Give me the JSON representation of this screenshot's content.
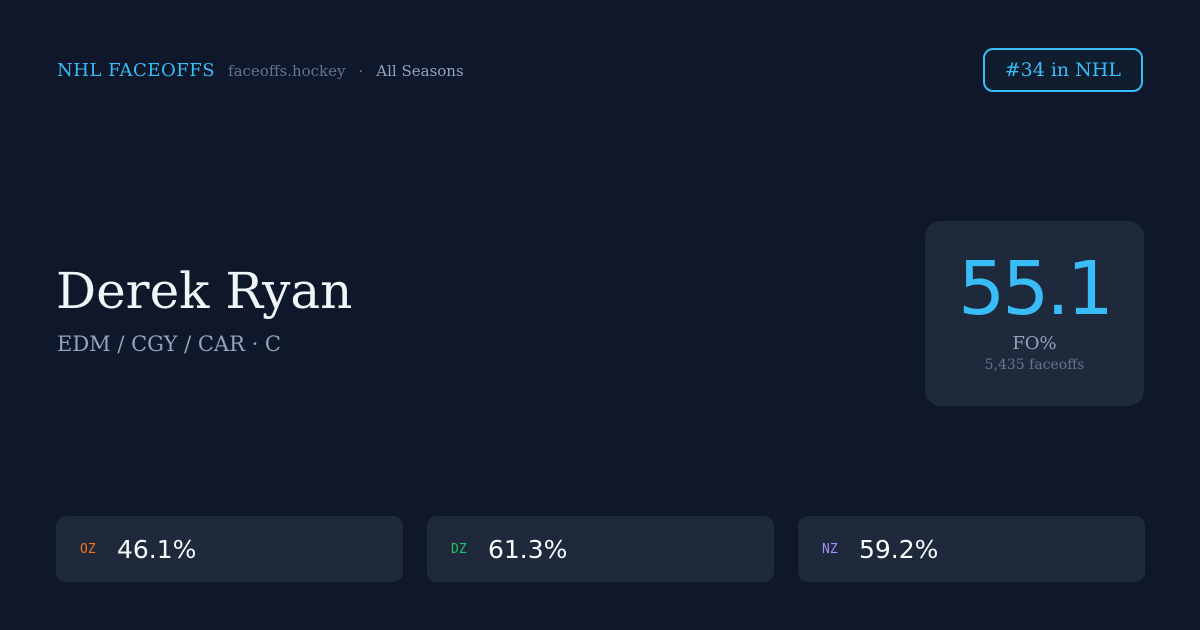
{
  "header": {
    "brand": "NHL FACEOFFS",
    "site": "faceoffs.hockey",
    "separator": "·",
    "season": "All Seasons"
  },
  "rank": "#34 in NHL",
  "player": {
    "name": "Derek Ryan",
    "teams": "EDM / CGY / CAR · C"
  },
  "summary": {
    "fo_pct": "55.1",
    "label": "FO%",
    "faceoffs": "5,435 faceoffs"
  },
  "zones": [
    {
      "label": "OZ",
      "value": "46.1%",
      "color": "#f97316"
    },
    {
      "label": "DZ",
      "value": "61.3%",
      "color": "#22c55e"
    },
    {
      "label": "NZ",
      "value": "59.2%",
      "color": "#a78bfa"
    }
  ]
}
